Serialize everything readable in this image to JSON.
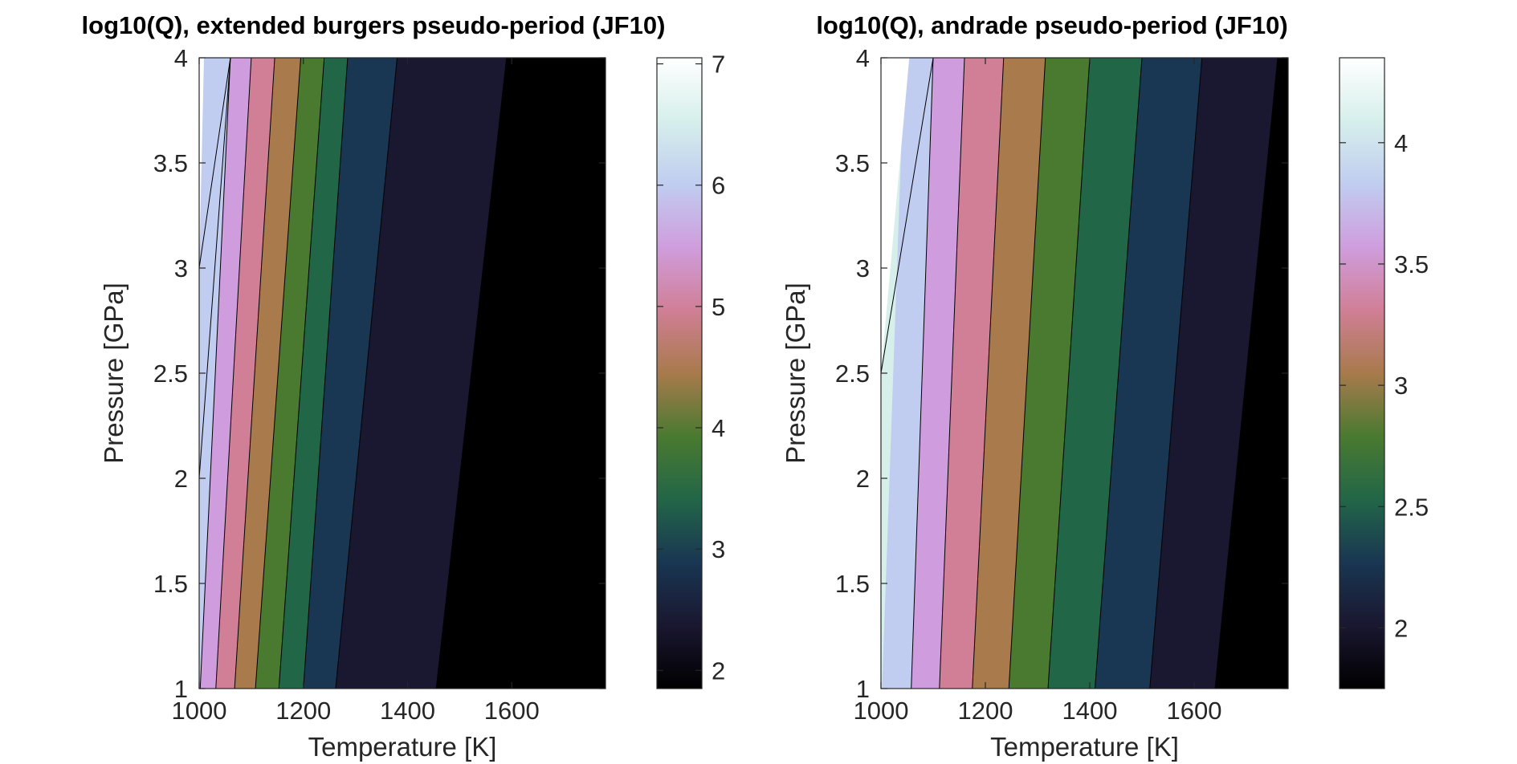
{
  "chart_data": [
    {
      "type": "filled-contour",
      "title": "log10(Q), extended burgers pseudo-period (JF10)",
      "xlabel": "Temperature [K]",
      "ylabel": "Pressure [GPa]",
      "xlim": [
        1000,
        1780
      ],
      "ylim": [
        1,
        4
      ],
      "xticks": [
        "1000",
        "1200",
        "1400",
        "1600"
      ],
      "yticks": [
        "1",
        "1.5",
        "2",
        "2.5",
        "3",
        "3.5",
        "4"
      ],
      "colorbar": {
        "range": [
          1.85,
          7.05
        ],
        "ticks": [
          "2",
          "3",
          "4",
          "5",
          "6",
          "7"
        ]
      },
      "contour_levels": [
        7.0,
        6.5,
        6.0,
        5.5,
        5.0,
        4.5,
        4.0,
        3.5,
        3.0,
        2.5,
        2.0
      ],
      "contour_lines_T_at_P1": [
        1000,
        1000,
        1002,
        1032,
        1068,
        1108,
        1153,
        1200,
        1262,
        1455,
        1600
      ],
      "contour_lines_T_at_P4": [
        1000,
        1000,
        1060,
        1100,
        1145,
        1195,
        1240,
        1285,
        1380,
        1590,
        1780
      ],
      "contour_lines_P_cut": [
        3.0,
        2.0
      ],
      "band_colors": [
        "#d6efeb",
        "#c0cdf0",
        "#cf9ddd",
        "#d07f96",
        "#a87a4c",
        "#4a7a30",
        "#226648",
        "#193652",
        "#1a1730",
        "#000000"
      ],
      "grid": false
    },
    {
      "type": "filled-contour",
      "title": "log10(Q), andrade pseudo-period (JF10)",
      "xlabel": "Temperature [K]",
      "ylabel": "Pressure [GPa]",
      "xlim": [
        1000,
        1780
      ],
      "ylim": [
        1,
        4
      ],
      "xticks": [
        "1000",
        "1200",
        "1400",
        "1600"
      ],
      "yticks": [
        "1",
        "1.5",
        "2",
        "2.5",
        "3",
        "3.5",
        "4"
      ],
      "colorbar": {
        "range": [
          1.75,
          4.35
        ],
        "ticks": [
          "2",
          "2.5",
          "3",
          "3.5",
          "4"
        ]
      },
      "contour_levels": [
        4.25,
        4.0,
        3.75,
        3.5,
        3.25,
        3.0,
        2.75,
        2.5,
        2.25,
        2.0,
        1.75
      ],
      "contour_lines_T_at_P1": [
        1000,
        1002,
        1058,
        1112,
        1175,
        1245,
        1320,
        1410,
        1515,
        1640,
        1780
      ],
      "contour_lines_T_at_P4": [
        1000,
        1045,
        1100,
        1160,
        1235,
        1315,
        1400,
        1500,
        1615,
        1760,
        1780
      ],
      "contour_lines_P_cut": [
        2.5
      ],
      "band_colors": [
        "#d6efeb",
        "#c0cdf0",
        "#cf9ddd",
        "#d07f96",
        "#a87a4c",
        "#4a7a30",
        "#226648",
        "#193652",
        "#1a1730",
        "#000000"
      ],
      "grid": false
    }
  ]
}
